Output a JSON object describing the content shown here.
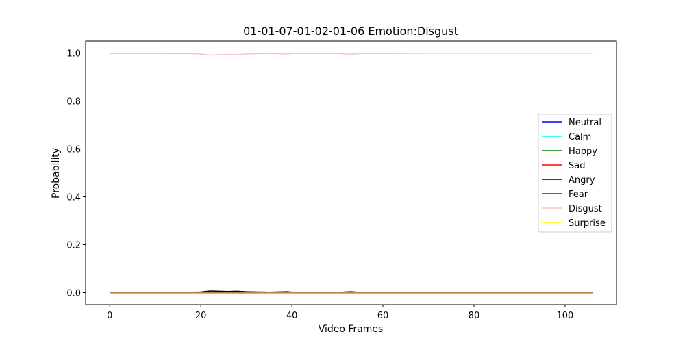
{
  "chart_data": {
    "type": "line",
    "title": "01-01-07-01-02-01-06 Emotion:Disgust",
    "xlabel": "Video Frames",
    "ylabel": "Probability",
    "xlim": [
      -5.3,
      111.3
    ],
    "ylim": [
      -0.05,
      1.05
    ],
    "xticks": [
      0,
      20,
      40,
      60,
      80,
      100
    ],
    "xtick_labels": [
      "0",
      "20",
      "40",
      "60",
      "80",
      "100"
    ],
    "yticks": [
      0.0,
      0.2,
      0.4,
      0.6,
      0.8,
      1.0
    ],
    "ytick_labels": [
      "0.0",
      "0.2",
      "0.4",
      "0.6",
      "0.8",
      "1.0"
    ],
    "grid": false,
    "legend_position": "center-right",
    "x": [
      0,
      5,
      10,
      15,
      18,
      20,
      22,
      24,
      26,
      28,
      30,
      35,
      39,
      40,
      45,
      50,
      53,
      55,
      60,
      70,
      80,
      90,
      100,
      106
    ],
    "series": [
      {
        "name": "Neutral",
        "color": "#0000ff",
        "values": [
          0.001,
          0.001,
          0.001,
          0.001,
          0.001,
          0.001,
          0.001,
          0.001,
          0.001,
          0.001,
          0.001,
          0.001,
          0.001,
          0.001,
          0.001,
          0.001,
          0.001,
          0.001,
          0.001,
          0.001,
          0.001,
          0.001,
          0.001,
          0.001
        ]
      },
      {
        "name": "Calm",
        "color": "#00ffff",
        "values": [
          0.001,
          0.001,
          0.001,
          0.001,
          0.001,
          0.001,
          0.001,
          0.001,
          0.001,
          0.001,
          0.001,
          0.001,
          0.001,
          0.001,
          0.001,
          0.001,
          0.001,
          0.001,
          0.001,
          0.001,
          0.001,
          0.001,
          0.001,
          0.001
        ]
      },
      {
        "name": "Happy",
        "color": "#008000",
        "values": [
          0.001,
          0.001,
          0.001,
          0.001,
          0.001,
          0.001,
          0.001,
          0.001,
          0.001,
          0.001,
          0.001,
          0.001,
          0.001,
          0.001,
          0.001,
          0.001,
          0.001,
          0.001,
          0.001,
          0.001,
          0.001,
          0.001,
          0.001,
          0.001
        ]
      },
      {
        "name": "Sad",
        "color": "#ff0000",
        "values": [
          0.0,
          0.0,
          0.0,
          0.0,
          0.0,
          0.0,
          0.0,
          0.0,
          0.0,
          0.0,
          0.0,
          0.0,
          0.0,
          0.0,
          0.0,
          0.0,
          0.0,
          0.0,
          0.0,
          0.0,
          0.0,
          0.0,
          0.0,
          0.0
        ]
      },
      {
        "name": "Angry",
        "color": "#000000",
        "values": [
          0.001,
          0.001,
          0.001,
          0.002,
          0.002,
          0.003,
          0.007,
          0.006,
          0.005,
          0.006,
          0.004,
          0.002,
          0.004,
          0.002,
          0.001,
          0.001,
          0.004,
          0.001,
          0.001,
          0.001,
          0.001,
          0.001,
          0.001,
          0.001
        ]
      },
      {
        "name": "Fear",
        "color": "#800080",
        "values": [
          0.0,
          0.0,
          0.0,
          0.0,
          0.0,
          0.0,
          0.0,
          0.0,
          0.0,
          0.0,
          0.0,
          0.0,
          0.0,
          0.0,
          0.0,
          0.0,
          0.0,
          0.0,
          0.0,
          0.0,
          0.0,
          0.0,
          0.0,
          0.0
        ]
      },
      {
        "name": "Disgust",
        "color": "#ffc0cb",
        "values": [
          0.998,
          0.998,
          0.998,
          0.997,
          0.997,
          0.996,
          0.991,
          0.993,
          0.994,
          0.993,
          0.996,
          0.998,
          0.996,
          0.998,
          0.998,
          0.998,
          0.995,
          0.998,
          0.998,
          0.999,
          0.999,
          0.999,
          0.999,
          0.999
        ]
      },
      {
        "name": "Surprise",
        "color": "#ffff00",
        "values": [
          0.002,
          0.002,
          0.002,
          0.002,
          0.002,
          0.002,
          0.002,
          0.002,
          0.002,
          0.002,
          0.002,
          0.002,
          0.002,
          0.002,
          0.002,
          0.002,
          0.002,
          0.002,
          0.002,
          0.002,
          0.002,
          0.002,
          0.002,
          0.002
        ]
      }
    ]
  }
}
